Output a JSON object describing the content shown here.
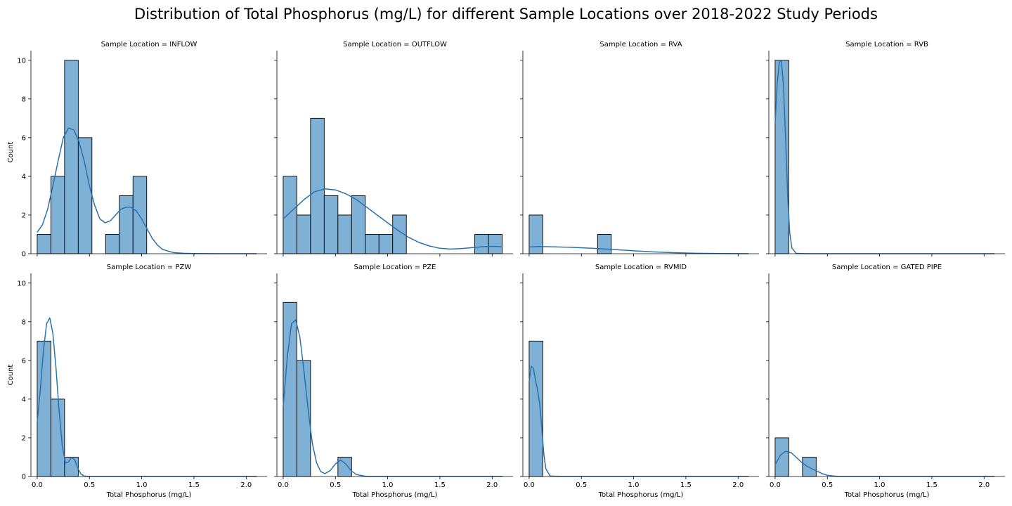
{
  "figure": {
    "title": "Distribution of Total Phosphorus (mg/L) for different Sample Locations over 2018-2022 Study Periods"
  },
  "chart_data": {
    "type": "bar",
    "subtype": "histogram-grid-with-kde",
    "bar_color": "#7fb0d5",
    "edge_color": "#000000",
    "kde_color": "#2a72ae",
    "xlabel": "Total Phosphorus (mg/L)",
    "ylabel": "Count",
    "xlim": [
      -0.06,
      2.2
    ],
    "ylim": [
      0,
      10.5
    ],
    "xticks": [
      "0.0",
      "0.5",
      "1.0",
      "1.5",
      "2.0"
    ],
    "yticks": [
      "0",
      "2",
      "4",
      "6",
      "8",
      "10"
    ],
    "bin_width": 0.131,
    "panels": [
      {
        "title": "Sample Location = INFLOW",
        "bins": [
          {
            "x": 0.0,
            "count": 1
          },
          {
            "x": 0.131,
            "count": 4
          },
          {
            "x": 0.262,
            "count": 10
          },
          {
            "x": 0.393,
            "count": 6
          },
          {
            "x": 0.655,
            "count": 1
          },
          {
            "x": 0.786,
            "count": 3
          },
          {
            "x": 0.917,
            "count": 4
          }
        ],
        "kde": {
          "x": [
            0,
            0.05,
            0.1,
            0.15,
            0.2,
            0.25,
            0.3,
            0.35,
            0.4,
            0.45,
            0.5,
            0.55,
            0.6,
            0.65,
            0.7,
            0.75,
            0.8,
            0.85,
            0.9,
            0.95,
            1.0,
            1.05,
            1.1,
            1.15,
            1.2,
            1.3,
            1.4,
            1.5,
            1.7,
            2.1
          ],
          "y": [
            1.1,
            1.5,
            2.3,
            3.5,
            4.8,
            6.0,
            6.5,
            6.4,
            5.8,
            4.8,
            3.5,
            2.5,
            1.8,
            1.6,
            1.7,
            2.0,
            2.3,
            2.4,
            2.4,
            2.2,
            1.8,
            1.3,
            0.8,
            0.45,
            0.22,
            0.06,
            0.02,
            0.01,
            0.0,
            0.0
          ]
        }
      },
      {
        "title": "Sample Location = OUTFLOW",
        "bins": [
          {
            "x": 0.0,
            "count": 4
          },
          {
            "x": 0.131,
            "count": 2
          },
          {
            "x": 0.262,
            "count": 7
          },
          {
            "x": 0.393,
            "count": 3
          },
          {
            "x": 0.524,
            "count": 2
          },
          {
            "x": 0.655,
            "count": 3
          },
          {
            "x": 0.786,
            "count": 1
          },
          {
            "x": 0.917,
            "count": 1
          },
          {
            "x": 1.048,
            "count": 2
          },
          {
            "x": 1.834,
            "count": 1
          },
          {
            "x": 1.965,
            "count": 1
          }
        ],
        "kde": {
          "x": [
            0,
            0.1,
            0.2,
            0.3,
            0.4,
            0.5,
            0.6,
            0.7,
            0.8,
            0.9,
            1.0,
            1.1,
            1.2,
            1.3,
            1.4,
            1.5,
            1.6,
            1.7,
            1.8,
            1.9,
            2.0,
            2.1
          ],
          "y": [
            1.8,
            2.3,
            2.8,
            3.2,
            3.35,
            3.3,
            3.1,
            2.8,
            2.4,
            2.0,
            1.6,
            1.2,
            0.85,
            0.58,
            0.4,
            0.28,
            0.24,
            0.26,
            0.31,
            0.36,
            0.38,
            0.36
          ]
        }
      },
      {
        "title": "Sample Location = RVA",
        "bins": [
          {
            "x": 0.0,
            "count": 2
          },
          {
            "x": 0.655,
            "count": 1
          }
        ],
        "kde": {
          "x": [
            0,
            0.1,
            0.2,
            0.4,
            0.6,
            0.8,
            1.0,
            1.2,
            1.4,
            1.6,
            1.8,
            2.1
          ],
          "y": [
            0.35,
            0.37,
            0.36,
            0.33,
            0.28,
            0.22,
            0.15,
            0.09,
            0.05,
            0.02,
            0.01,
            0.0
          ]
        }
      },
      {
        "title": "Sample Location = RVB",
        "bins": [
          {
            "x": 0.0,
            "count": 10
          }
        ],
        "kde": {
          "x": [
            0,
            0.02,
            0.04,
            0.06,
            0.08,
            0.1,
            0.12,
            0.14,
            0.16,
            0.2,
            0.3,
            2.1
          ],
          "y": [
            6.7,
            8.8,
            9.9,
            10.0,
            8.7,
            6.0,
            3.0,
            1.1,
            0.3,
            0.02,
            0.0,
            0.0
          ]
        }
      },
      {
        "title": "Sample Location = PZW",
        "bins": [
          {
            "x": 0.0,
            "count": 7
          },
          {
            "x": 0.131,
            "count": 4
          },
          {
            "x": 0.262,
            "count": 1
          }
        ],
        "kde": {
          "x": [
            0,
            0.03,
            0.06,
            0.09,
            0.12,
            0.15,
            0.18,
            0.21,
            0.24,
            0.27,
            0.3,
            0.33,
            0.36,
            0.39,
            0.42,
            0.45,
            0.5,
            0.6,
            2.1
          ],
          "y": [
            2.8,
            4.5,
            6.5,
            7.9,
            8.2,
            7.4,
            5.6,
            3.4,
            1.6,
            0.7,
            0.75,
            1.0,
            0.85,
            0.4,
            0.12,
            0.03,
            0.0,
            0.0,
            0.0
          ]
        }
      },
      {
        "title": "Sample Location = PZE",
        "bins": [
          {
            "x": 0.0,
            "count": 9
          },
          {
            "x": 0.131,
            "count": 6
          },
          {
            "x": 0.524,
            "count": 1
          }
        ],
        "kde": {
          "x": [
            0,
            0.04,
            0.08,
            0.12,
            0.16,
            0.2,
            0.24,
            0.28,
            0.32,
            0.36,
            0.4,
            0.45,
            0.5,
            0.55,
            0.6,
            0.65,
            0.7,
            0.8,
            2.1
          ],
          "y": [
            3.6,
            6.2,
            7.9,
            8.1,
            7.2,
            5.4,
            3.4,
            1.7,
            0.7,
            0.25,
            0.15,
            0.3,
            0.65,
            0.85,
            0.65,
            0.3,
            0.1,
            0.0,
            0.0
          ]
        }
      },
      {
        "title": "Sample Location = RVMID",
        "bins": [
          {
            "x": 0.0,
            "count": 7
          }
        ],
        "kde": {
          "x": [
            0,
            0.02,
            0.04,
            0.06,
            0.08,
            0.1,
            0.12,
            0.14,
            0.16,
            0.2,
            0.3,
            2.1
          ],
          "y": [
            4.9,
            5.7,
            5.6,
            5.0,
            4.5,
            3.8,
            2.6,
            1.2,
            0.4,
            0.03,
            0.0,
            0.0
          ]
        }
      },
      {
        "title": "Sample Location = GATED PIPE",
        "bins": [
          {
            "x": 0.0,
            "count": 2
          },
          {
            "x": 0.262,
            "count": 1
          }
        ],
        "kde": {
          "x": [
            0,
            0.05,
            0.1,
            0.15,
            0.2,
            0.25,
            0.3,
            0.35,
            0.4,
            0.45,
            0.5,
            0.6,
            0.8,
            2.1
          ],
          "y": [
            0.6,
            1.1,
            1.3,
            1.25,
            1.0,
            0.75,
            0.55,
            0.4,
            0.28,
            0.15,
            0.06,
            0.0,
            0.0,
            0.0
          ]
        }
      }
    ]
  }
}
